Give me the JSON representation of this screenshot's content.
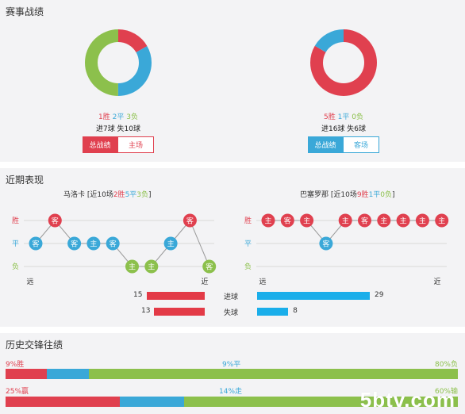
{
  "record": {
    "title": "赛事战绩",
    "left": {
      "win": "1胜",
      "draw": "2平",
      "loss": "3负",
      "goals": "进7球  失10球",
      "tab_total": "总战绩",
      "tab_venue": "主场",
      "pie": [
        1,
        2,
        3
      ]
    },
    "right": {
      "win": "5胜",
      "draw": "1平",
      "loss": "0负",
      "goals": "进16球  失6球",
      "tab_total": "总战绩",
      "tab_venue": "客场",
      "pie": [
        5,
        1,
        0
      ]
    },
    "colors": {
      "win": "#e0404f",
      "draw": "#3aa8d8",
      "loss": "#8cc04c"
    }
  },
  "form": {
    "title": "近期表现",
    "left": {
      "team_header": "马洛卡 [近10场2胜5平3负]",
      "header_parts": {
        "pre": "马洛卡 [近10场",
        "w": "2胜",
        "d": "5平",
        "l": "3负",
        "post": "]"
      },
      "far": "远",
      "near": "近",
      "results": [
        "D",
        "W",
        "D",
        "D",
        "D",
        "L",
        "L",
        "D",
        "W",
        "L"
      ],
      "venues": [
        "客",
        "客",
        "客",
        "主",
        "客",
        "主",
        "主",
        "主",
        "客",
        "客"
      ]
    },
    "right": {
      "team_header": "巴塞罗那 [近10场9胜1平0负]",
      "header_parts": {
        "pre": "巴塞罗那 [近10场",
        "w": "9胜",
        "d": "1平",
        "l": "0负",
        "post": "]"
      },
      "far": "远",
      "near": "近",
      "results": [
        "W",
        "W",
        "W",
        "D",
        "W",
        "W",
        "W",
        "W",
        "W",
        "W"
      ],
      "venues": [
        "主",
        "客",
        "主",
        "客",
        "主",
        "客",
        "主",
        "主",
        "主",
        "主"
      ]
    },
    "axis": {
      "win": "胜",
      "draw": "平",
      "loss": "负"
    },
    "goals_scored_label": "进球",
    "goals_conceded_label": "失球",
    "left_scored": 15,
    "left_conceded": 13,
    "right_scored": 29,
    "right_conceded": 8
  },
  "history": {
    "title": "历史交锋往绩",
    "row1": {
      "win": "9%胜",
      "draw": "9%平",
      "loss": "80%负",
      "pcts": [
        9,
        9,
        80
      ]
    },
    "row2": {
      "win": "25%赢",
      "draw": "14%走",
      "loss": "60%输",
      "pcts": [
        25,
        14,
        60
      ]
    }
  },
  "watermark": "5btv.com"
}
